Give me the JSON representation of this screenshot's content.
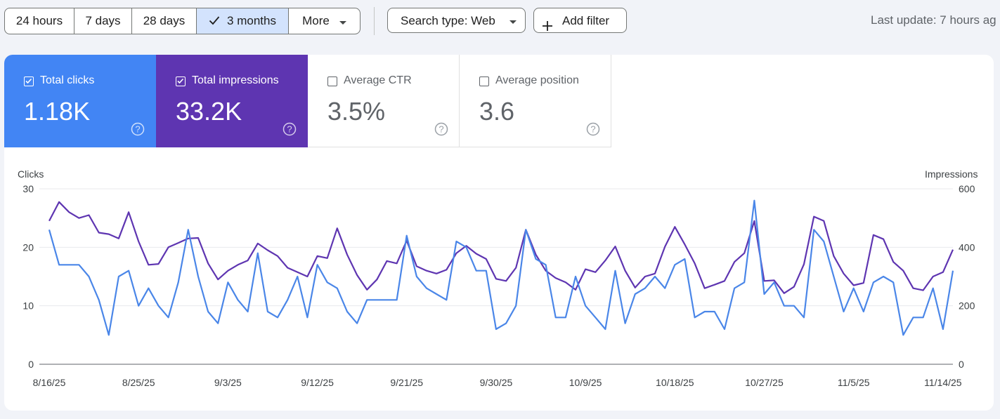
{
  "toolbar": {
    "ranges": [
      {
        "label": "24 hours",
        "selected": false
      },
      {
        "label": "7 days",
        "selected": false
      },
      {
        "label": "28 days",
        "selected": false
      },
      {
        "label": "3 months",
        "selected": true
      },
      {
        "label": "More",
        "selected": false
      }
    ],
    "search_type_label": "Search type: Web",
    "add_filter_label": "Add filter",
    "last_update": "Last update: 7 hours ag"
  },
  "metrics": [
    {
      "label": "Total clicks",
      "value": "1.18K",
      "checked": true,
      "color": "#4285f4"
    },
    {
      "label": "Total impressions",
      "value": "33.2K",
      "checked": true,
      "color": "#5e35b1"
    },
    {
      "label": "Average CTR",
      "value": "3.5%",
      "checked": false
    },
    {
      "label": "Average position",
      "value": "3.6",
      "checked": false
    }
  ],
  "chart_data": {
    "type": "line",
    "left_axis_label": "Clicks",
    "right_axis_label": "Impressions",
    "left_ylim": [
      0,
      30
    ],
    "right_ylim": [
      0,
      600
    ],
    "left_ticks": [
      "0",
      "10",
      "20",
      "30"
    ],
    "right_ticks": [
      "0",
      "200",
      "400",
      "600"
    ],
    "x_tick_labels": [
      "8/16/25",
      "8/25/25",
      "9/3/25",
      "9/12/25",
      "9/21/25",
      "9/30/25",
      "10/9/25",
      "10/18/25",
      "10/27/25",
      "11/5/25",
      "11/14/25"
    ],
    "grid": true,
    "series": [
      {
        "axis": "left",
        "color": "#4a86e8",
        "values": [
          23,
          17,
          17,
          17,
          15,
          11,
          5,
          15,
          16,
          10,
          13,
          10,
          8,
          14,
          23,
          15,
          9,
          7,
          14,
          11,
          9,
          19,
          9,
          8,
          11,
          15,
          8,
          17,
          14,
          13,
          9,
          7,
          11,
          11,
          11,
          11,
          22,
          15,
          13,
          12,
          11,
          21,
          20,
          16,
          16,
          6,
          7,
          10,
          23,
          18,
          17,
          8,
          8,
          15,
          10,
          8,
          6,
          16,
          7,
          12,
          13,
          15,
          13,
          17,
          18,
          8,
          9,
          9,
          6,
          13,
          14,
          28,
          12,
          14,
          10,
          10,
          8,
          23,
          21,
          15,
          9,
          13,
          9,
          14,
          15,
          14,
          5,
          8,
          8,
          13,
          6,
          16
        ]
      },
      {
        "axis": "right",
        "color": "#5e35b1",
        "values": [
          490,
          555,
          520,
          500,
          510,
          450,
          445,
          430,
          520,
          420,
          340,
          343,
          400,
          415,
          430,
          432,
          345,
          290,
          320,
          340,
          355,
          413,
          390,
          370,
          330,
          315,
          300,
          370,
          363,
          465,
          375,
          305,
          255,
          290,
          353,
          345,
          423,
          335,
          320,
          310,
          323,
          380,
          405,
          378,
          360,
          292,
          285,
          330,
          460,
          375,
          320,
          295,
          280,
          255,
          325,
          315,
          355,
          403,
          320,
          262,
          300,
          310,
          402,
          470,
          410,
          345,
          260,
          272,
          285,
          350,
          380,
          490,
          285,
          287,
          243,
          265,
          342,
          505,
          490,
          370,
          310,
          270,
          278,
          442,
          428,
          350,
          320,
          260,
          253,
          300,
          315,
          392
        ]
      }
    ]
  }
}
